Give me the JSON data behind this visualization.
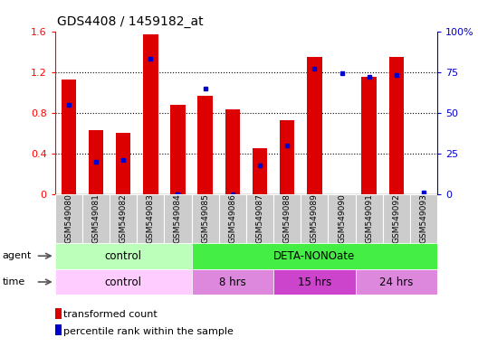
{
  "title": "GDS4408 / 1459182_at",
  "samples": [
    "GSM549080",
    "GSM549081",
    "GSM549082",
    "GSM549083",
    "GSM549084",
    "GSM549085",
    "GSM549086",
    "GSM549087",
    "GSM549088",
    "GSM549089",
    "GSM549090",
    "GSM549091",
    "GSM549092",
    "GSM549093"
  ],
  "transformed_count": [
    1.13,
    0.63,
    0.6,
    1.57,
    0.88,
    0.97,
    0.83,
    0.45,
    0.73,
    1.35,
    0.0,
    1.15,
    1.35,
    0.0
  ],
  "percentile_rank": [
    55,
    20,
    21,
    83,
    0,
    65,
    0,
    18,
    30,
    77,
    74,
    72,
    73,
    1
  ],
  "ylim_left": [
    0,
    1.6
  ],
  "ylim_right": [
    0,
    100
  ],
  "yticks_left": [
    0,
    0.4,
    0.8,
    1.2,
    1.6
  ],
  "yticks_right": [
    0,
    25,
    50,
    75,
    100
  ],
  "bar_color": "#dd0000",
  "dot_color": "#0000cc",
  "agent_row": [
    {
      "label": "control",
      "start": 0,
      "end": 5,
      "color": "#bbffbb"
    },
    {
      "label": "DETA-NONOate",
      "start": 5,
      "end": 14,
      "color": "#44ee44"
    }
  ],
  "time_row": [
    {
      "label": "control",
      "start": 0,
      "end": 5,
      "color": "#ffccff"
    },
    {
      "label": "8 hrs",
      "start": 5,
      "end": 8,
      "color": "#dd88dd"
    },
    {
      "label": "15 hrs",
      "start": 8,
      "end": 11,
      "color": "#cc44cc"
    },
    {
      "label": "24 hrs",
      "start": 11,
      "end": 14,
      "color": "#dd88dd"
    }
  ],
  "legend_bar_color": "#dd0000",
  "legend_dot_color": "#0000cc",
  "bg_color": "#ffffff",
  "tick_label_bg": "#cccccc"
}
